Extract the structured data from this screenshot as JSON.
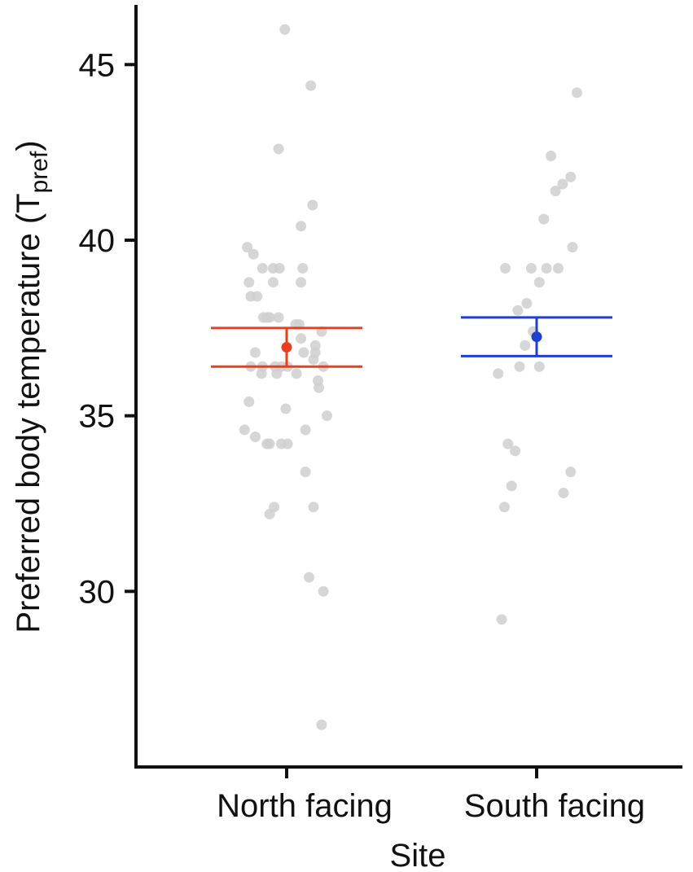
{
  "chart_data": {
    "type": "scatter",
    "xlabel": "Site",
    "ylabel": "Preferred body temperature (T",
    "ylabel_sub": "pref",
    "ylabel_close": ")",
    "ylim": [
      25.0,
      46.7
    ],
    "yticks": [
      30,
      35,
      40,
      45
    ],
    "grid": false,
    "categories": [
      "North facing",
      "South facing"
    ],
    "colors": {
      "North facing": "#e8401c",
      "South facing": "#1f3fd1",
      "points": "#cfcfcf"
    },
    "summary": [
      {
        "category": "North facing",
        "mean": 36.95,
        "lower": 36.4,
        "upper": 37.5
      },
      {
        "category": "South facing",
        "mean": 37.25,
        "lower": 36.7,
        "upper": 37.8
      }
    ],
    "series": [
      {
        "category": "North facing",
        "points": [
          {
            "j": -0.02,
            "y": 46.0
          },
          {
            "j": 0.27,
            "y": 44.4
          },
          {
            "j": -0.09,
            "y": 42.6
          },
          {
            "j": 0.29,
            "y": 41.0
          },
          {
            "j": 0.16,
            "y": 40.4
          },
          {
            "j": -0.44,
            "y": 39.8
          },
          {
            "j": -0.37,
            "y": 39.6
          },
          {
            "j": -0.27,
            "y": 39.2
          },
          {
            "j": -0.15,
            "y": 39.2
          },
          {
            "j": -0.08,
            "y": 39.2
          },
          {
            "j": 0.18,
            "y": 39.2
          },
          {
            "j": -0.42,
            "y": 38.8
          },
          {
            "j": -0.15,
            "y": 38.8
          },
          {
            "j": 0.16,
            "y": 38.8
          },
          {
            "j": -0.4,
            "y": 38.4
          },
          {
            "j": -0.33,
            "y": 38.4
          },
          {
            "j": -0.26,
            "y": 37.8
          },
          {
            "j": -0.19,
            "y": 37.8
          },
          {
            "j": -0.09,
            "y": 37.8
          },
          {
            "j": -0.22,
            "y": 37.8
          },
          {
            "j": 0.1,
            "y": 37.6
          },
          {
            "j": 0.14,
            "y": 37.6
          },
          {
            "j": 0.39,
            "y": 37.4
          },
          {
            "j": 0.16,
            "y": 37.2
          },
          {
            "j": 0.32,
            "y": 37.0
          },
          {
            "j": -0.35,
            "y": 36.8
          },
          {
            "j": 0.19,
            "y": 36.8
          },
          {
            "j": 0.32,
            "y": 36.8
          },
          {
            "j": 0.3,
            "y": 36.6
          },
          {
            "j": -0.4,
            "y": 36.4
          },
          {
            "j": -0.27,
            "y": 36.4
          },
          {
            "j": -0.13,
            "y": 36.4
          },
          {
            "j": -0.06,
            "y": 36.4
          },
          {
            "j": 0.01,
            "y": 36.4
          },
          {
            "j": 0.41,
            "y": 36.4
          },
          {
            "j": -0.28,
            "y": 36.2
          },
          {
            "j": -0.11,
            "y": 36.2
          },
          {
            "j": 0.11,
            "y": 36.2
          },
          {
            "j": 0.35,
            "y": 36.0
          },
          {
            "j": 0.36,
            "y": 35.8
          },
          {
            "j": -0.42,
            "y": 35.4
          },
          {
            "j": -0.01,
            "y": 35.2
          },
          {
            "j": 0.45,
            "y": 35.0
          },
          {
            "j": -0.47,
            "y": 34.6
          },
          {
            "j": 0.21,
            "y": 34.6
          },
          {
            "j": -0.35,
            "y": 34.4
          },
          {
            "j": -0.22,
            "y": 34.2
          },
          {
            "j": -0.19,
            "y": 34.2
          },
          {
            "j": -0.06,
            "y": 34.2
          },
          {
            "j": 0.01,
            "y": 34.2
          },
          {
            "j": 0.21,
            "y": 33.4
          },
          {
            "j": -0.14,
            "y": 32.4
          },
          {
            "j": 0.3,
            "y": 32.4
          },
          {
            "j": -0.19,
            "y": 32.2
          },
          {
            "j": 0.25,
            "y": 30.4
          },
          {
            "j": 0.41,
            "y": 30.0
          },
          {
            "j": 0.39,
            "y": 26.2
          }
        ]
      },
      {
        "category": "South facing",
        "points": [
          {
            "j": 0.45,
            "y": 44.2
          },
          {
            "j": 0.16,
            "y": 42.4
          },
          {
            "j": 0.38,
            "y": 41.8
          },
          {
            "j": 0.29,
            "y": 41.6
          },
          {
            "j": 0.21,
            "y": 41.4
          },
          {
            "j": 0.08,
            "y": 40.6
          },
          {
            "j": 0.4,
            "y": 39.8
          },
          {
            "j": -0.35,
            "y": 39.2
          },
          {
            "j": -0.06,
            "y": 39.2
          },
          {
            "j": 0.11,
            "y": 39.2
          },
          {
            "j": 0.24,
            "y": 39.2
          },
          {
            "j": 0.03,
            "y": 38.8
          },
          {
            "j": -0.11,
            "y": 38.2
          },
          {
            "j": -0.21,
            "y": 38.0
          },
          {
            "j": -0.04,
            "y": 37.4
          },
          {
            "j": -0.13,
            "y": 37.0
          },
          {
            "j": -0.19,
            "y": 36.4
          },
          {
            "j": 0.03,
            "y": 36.4
          },
          {
            "j": -0.43,
            "y": 36.2
          },
          {
            "j": -0.32,
            "y": 34.2
          },
          {
            "j": -0.24,
            "y": 34.0
          },
          {
            "j": 0.38,
            "y": 33.4
          },
          {
            "j": -0.28,
            "y": 33.0
          },
          {
            "j": 0.3,
            "y": 32.8
          },
          {
            "j": -0.36,
            "y": 32.4
          },
          {
            "j": -0.39,
            "y": 29.2
          }
        ]
      }
    ]
  }
}
